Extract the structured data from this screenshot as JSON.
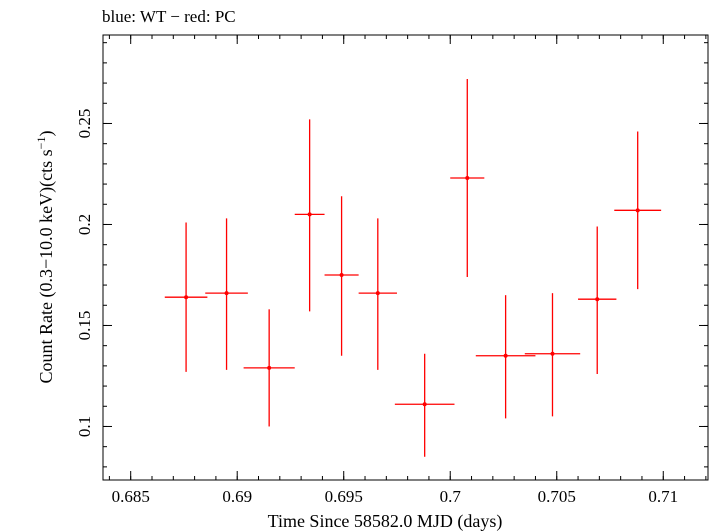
{
  "chart_data": {
    "type": "scatter",
    "title": "blue: WT − red: PC",
    "xlabel": "Time Since 58582.0 MJD (days)",
    "ylabel_main": "Count Rate (0.3−10.0 keV)(cts s",
    "ylabel_sup": "−1",
    "ylabel_close": ")",
    "xlim": [
      0.6837,
      0.7121
    ],
    "ylim": [
      0.0735,
      0.2938
    ],
    "x_ticks": [
      {
        "v": 0.685,
        "label": "0.685"
      },
      {
        "v": 0.69,
        "label": "0.69"
      },
      {
        "v": 0.695,
        "label": "0.695"
      },
      {
        "v": 0.7,
        "label": "0.7"
      },
      {
        "v": 0.705,
        "label": "0.705"
      },
      {
        "v": 0.71,
        "label": "0.71"
      }
    ],
    "y_ticks": [
      {
        "v": 0.1,
        "label": "0.1"
      },
      {
        "v": 0.15,
        "label": "0.15"
      },
      {
        "v": 0.2,
        "label": "0.2"
      },
      {
        "v": 0.25,
        "label": "0.25"
      }
    ],
    "x_minor_step": 0.001,
    "y_minor_step": 0.01,
    "grid": false,
    "series": [
      {
        "color": "#ff0000",
        "points": [
          {
            "x": 0.6876,
            "xerr": 0.001,
            "y": 0.164,
            "ylo": 0.127,
            "yhi": 0.201
          },
          {
            "x": 0.6895,
            "xerr": 0.001,
            "y": 0.166,
            "ylo": 0.128,
            "yhi": 0.203
          },
          {
            "x": 0.6915,
            "xerr": 0.0012,
            "y": 0.129,
            "ylo": 0.1,
            "yhi": 0.158
          },
          {
            "x": 0.6934,
            "xerr": 0.0007,
            "y": 0.205,
            "ylo": 0.157,
            "yhi": 0.252
          },
          {
            "x": 0.6949,
            "xerr": 0.0008,
            "y": 0.175,
            "ylo": 0.135,
            "yhi": 0.214
          },
          {
            "x": 0.6966,
            "xerr": 0.0009,
            "y": 0.166,
            "ylo": 0.128,
            "yhi": 0.203
          },
          {
            "x": 0.6988,
            "xerr": 0.0014,
            "y": 0.111,
            "ylo": 0.085,
            "yhi": 0.136
          },
          {
            "x": 0.7008,
            "xerr": 0.0008,
            "y": 0.223,
            "ylo": 0.174,
            "yhi": 0.272
          },
          {
            "x": 0.7026,
            "xerr": 0.0014,
            "y": 0.135,
            "ylo": 0.104,
            "yhi": 0.165
          },
          {
            "x": 0.7048,
            "xerr": 0.0013,
            "y": 0.136,
            "ylo": 0.105,
            "yhi": 0.166
          },
          {
            "x": 0.7069,
            "xerr": 0.0009,
            "y": 0.163,
            "ylo": 0.126,
            "yhi": 0.199
          },
          {
            "x": 0.7088,
            "xerr": 0.0011,
            "y": 0.207,
            "ylo": 0.168,
            "yhi": 0.246
          }
        ]
      }
    ]
  }
}
